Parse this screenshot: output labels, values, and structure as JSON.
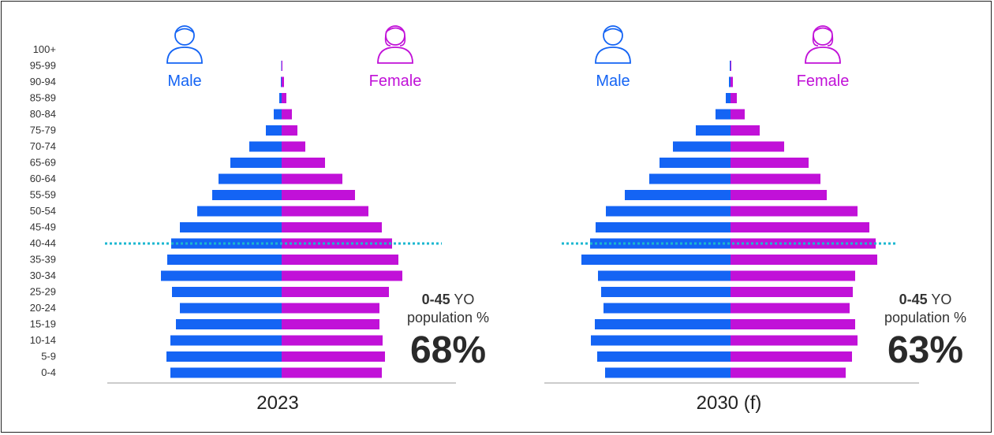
{
  "colors": {
    "male": "#1464f4",
    "female": "#c111d8",
    "threshold_line": "#1bb7d0",
    "axis": "#999999"
  },
  "icons": {
    "male": "male-person-icon",
    "female": "female-person-icon"
  },
  "chart_data": [
    {
      "type": "bar",
      "subtype": "population-pyramid",
      "title": "2023",
      "age_groups": [
        "0-4",
        "5-9",
        "10-14",
        "15-19",
        "20-24",
        "25-29",
        "30-34",
        "35-39",
        "40-44",
        "45-49",
        "50-54",
        "55-59",
        "60-64",
        "65-69",
        "70-74",
        "75-79",
        "80-84",
        "85-89",
        "90-94",
        "95-99",
        "100+"
      ],
      "series": [
        {
          "name": "Male",
          "values": [
            141,
            146,
            141,
            134,
            129,
            139,
            153,
            145,
            140,
            129,
            107,
            88,
            80,
            65,
            41,
            20,
            10,
            3,
            1,
            0.5,
            0
          ]
        },
        {
          "name": "Female",
          "values": [
            127,
            131,
            128,
            124,
            124,
            136,
            153,
            148,
            140,
            127,
            110,
            93,
            77,
            55,
            30,
            20,
            13,
            6,
            3,
            1,
            0
          ]
        }
      ],
      "threshold_label": "40-44",
      "stat_caption_bold": "0-45",
      "stat_caption_rest": "YO",
      "stat_caption_line2": "population %",
      "stat_value": "68%"
    },
    {
      "type": "bar",
      "subtype": "population-pyramid",
      "title": "2030 (f)",
      "age_groups": [
        "0-4",
        "5-9",
        "10-14",
        "15-19",
        "20-24",
        "25-29",
        "30-34",
        "35-39",
        "40-44",
        "45-49",
        "50-54",
        "55-59",
        "60-64",
        "65-69",
        "70-74",
        "75-79",
        "80-84",
        "85-89",
        "90-94",
        "95-99",
        "100+"
      ],
      "series": [
        {
          "name": "Male",
          "values": [
            159,
            169,
            177,
            172,
            161,
            164,
            168,
            189,
            178,
            171,
            158,
            134,
            103,
            90,
            73,
            44,
            19,
            6,
            2,
            1,
            0
          ]
        },
        {
          "name": "Female",
          "values": [
            146,
            154,
            161,
            158,
            151,
            155,
            158,
            186,
            184,
            176,
            161,
            122,
            114,
            99,
            68,
            37,
            18,
            8,
            3,
            1,
            0
          ]
        }
      ],
      "threshold_label": "40-44",
      "stat_caption_bold": "0-45",
      "stat_caption_rest": "YO",
      "stat_caption_line2": "population %",
      "stat_value": "63%"
    }
  ]
}
